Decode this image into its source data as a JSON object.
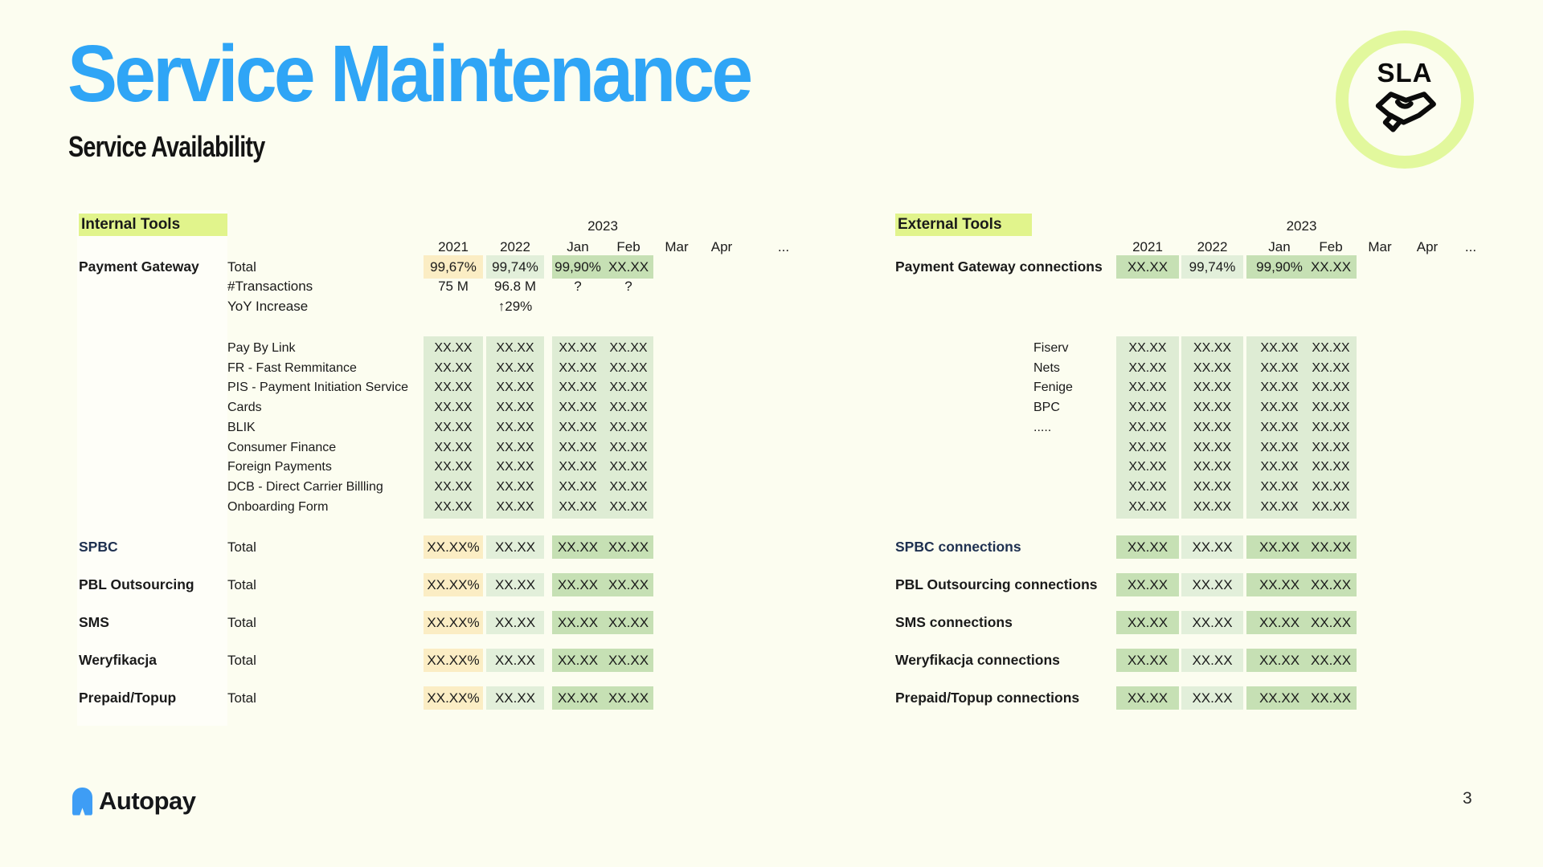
{
  "page": {
    "title": "Service Maintenance",
    "subtitle": "Service Availability",
    "badge_label": "SLA",
    "logo_text": "Autopay",
    "page_number": "3"
  },
  "colors": {
    "accent_blue": "#2FA5F6",
    "lime_highlight": "#E1F48C",
    "cell_cream": "#FBEDC4",
    "cell_pale_green": "#E2EFDA",
    "cell_green": "#C6E0B4",
    "band_green": "#DEECD4",
    "navy_label": "#1E3050"
  },
  "columns": {
    "year_group": "2023",
    "labels": [
      "2021",
      "2022",
      "Jan",
      "Feb",
      "Mar",
      "Apr",
      "..."
    ]
  },
  "internal": {
    "section": "Internal Tools",
    "gateway": {
      "label": "Payment Gateway",
      "rows": [
        {
          "item": "Total",
          "values": [
            "99,67%",
            "99,74%",
            "99,90%",
            "XX.XX"
          ],
          "highlighted": true
        },
        {
          "item": "#Transactions",
          "values": [
            "75 M",
            "96.8 M",
            "?",
            "?"
          ]
        },
        {
          "item": "YoY Increase",
          "values": [
            "",
            "↑29%",
            "",
            ""
          ]
        }
      ]
    },
    "services": [
      {
        "label": "Pay By Link",
        "values": [
          "XX.XX",
          "XX.XX",
          "XX.XX",
          "XX.XX"
        ]
      },
      {
        "label": "FR - Fast Remmitance",
        "values": [
          "XX.XX",
          "XX.XX",
          "XX.XX",
          "XX.XX"
        ]
      },
      {
        "label": "PIS - Payment Initiation Service",
        "values": [
          "XX.XX",
          "XX.XX",
          "XX.XX",
          "XX.XX"
        ]
      },
      {
        "label": "Cards",
        "values": [
          "XX.XX",
          "XX.XX",
          "XX.XX",
          "XX.XX"
        ]
      },
      {
        "label": "BLIK",
        "values": [
          "XX.XX",
          "XX.XX",
          "XX.XX",
          "XX.XX"
        ]
      },
      {
        "label": "Consumer Finance",
        "values": [
          "XX.XX",
          "XX.XX",
          "XX.XX",
          "XX.XX"
        ]
      },
      {
        "label": "Foreign Payments",
        "values": [
          "XX.XX",
          "XX.XX",
          "XX.XX",
          "XX.XX"
        ]
      },
      {
        "label": "DCB - Direct Carrier Billling",
        "values": [
          "XX.XX",
          "XX.XX",
          "XX.XX",
          "XX.XX"
        ]
      },
      {
        "label": "Onboarding Form",
        "values": [
          "XX.XX",
          "XX.XX",
          "XX.XX",
          "XX.XX"
        ]
      }
    ],
    "totals": [
      {
        "label": "SPBC",
        "item": "Total",
        "values": [
          "XX.XX%",
          "XX.XX",
          "XX.XX",
          "XX.XX"
        ],
        "navy": true
      },
      {
        "label": "PBL Outsourcing",
        "item": "Total",
        "values": [
          "XX.XX%",
          "XX.XX",
          "XX.XX",
          "XX.XX"
        ]
      },
      {
        "label": "SMS",
        "item": "Total",
        "values": [
          "XX.XX%",
          "XX.XX",
          "XX.XX",
          "XX.XX"
        ]
      },
      {
        "label": "Weryfikacja",
        "item": "Total",
        "values": [
          "XX.XX%",
          "XX.XX",
          "XX.XX",
          "XX.XX"
        ]
      },
      {
        "label": "Prepaid/Topup",
        "item": "Total",
        "values": [
          "XX.XX%",
          "XX.XX",
          "XX.XX",
          "XX.XX"
        ]
      }
    ]
  },
  "external": {
    "section": "External Tools",
    "gateway": {
      "label": "Payment Gateway connections",
      "values": [
        "XX.XX",
        "99,74%",
        "99,90%",
        "XX.XX"
      ]
    },
    "services": [
      {
        "label": "Fiserv",
        "values": [
          "XX.XX",
          "XX.XX",
          "XX.XX",
          "XX.XX"
        ]
      },
      {
        "label": "Nets",
        "values": [
          "XX.XX",
          "XX.XX",
          "XX.XX",
          "XX.XX"
        ]
      },
      {
        "label": "Fenige",
        "values": [
          "XX.XX",
          "XX.XX",
          "XX.XX",
          "XX.XX"
        ]
      },
      {
        "label": "BPC",
        "values": [
          "XX.XX",
          "XX.XX",
          "XX.XX",
          "XX.XX"
        ]
      },
      {
        "label": ".....",
        "values": [
          "XX.XX",
          "XX.XX",
          "XX.XX",
          "XX.XX"
        ]
      },
      {
        "label": "",
        "values": [
          "XX.XX",
          "XX.XX",
          "XX.XX",
          "XX.XX"
        ]
      },
      {
        "label": "",
        "values": [
          "XX.XX",
          "XX.XX",
          "XX.XX",
          "XX.XX"
        ]
      },
      {
        "label": "",
        "values": [
          "XX.XX",
          "XX.XX",
          "XX.XX",
          "XX.XX"
        ]
      },
      {
        "label": "",
        "values": [
          "XX.XX",
          "XX.XX",
          "XX.XX",
          "XX.XX"
        ]
      }
    ],
    "totals": [
      {
        "label": "SPBC connections",
        "values": [
          "XX.XX",
          "XX.XX",
          "XX.XX",
          "XX.XX"
        ],
        "navy": true
      },
      {
        "label": "PBL Outsourcing connections",
        "values": [
          "XX.XX",
          "XX.XX",
          "XX.XX",
          "XX.XX"
        ]
      },
      {
        "label": "SMS connections",
        "values": [
          "XX.XX",
          "XX.XX",
          "XX.XX",
          "XX.XX"
        ]
      },
      {
        "label": "Weryfikacja connections",
        "values": [
          "XX.XX",
          "XX.XX",
          "XX.XX",
          "XX.XX"
        ]
      },
      {
        "label": "Prepaid/Topup connections",
        "values": [
          "XX.XX",
          "XX.XX",
          "XX.XX",
          "XX.XX"
        ]
      }
    ]
  }
}
